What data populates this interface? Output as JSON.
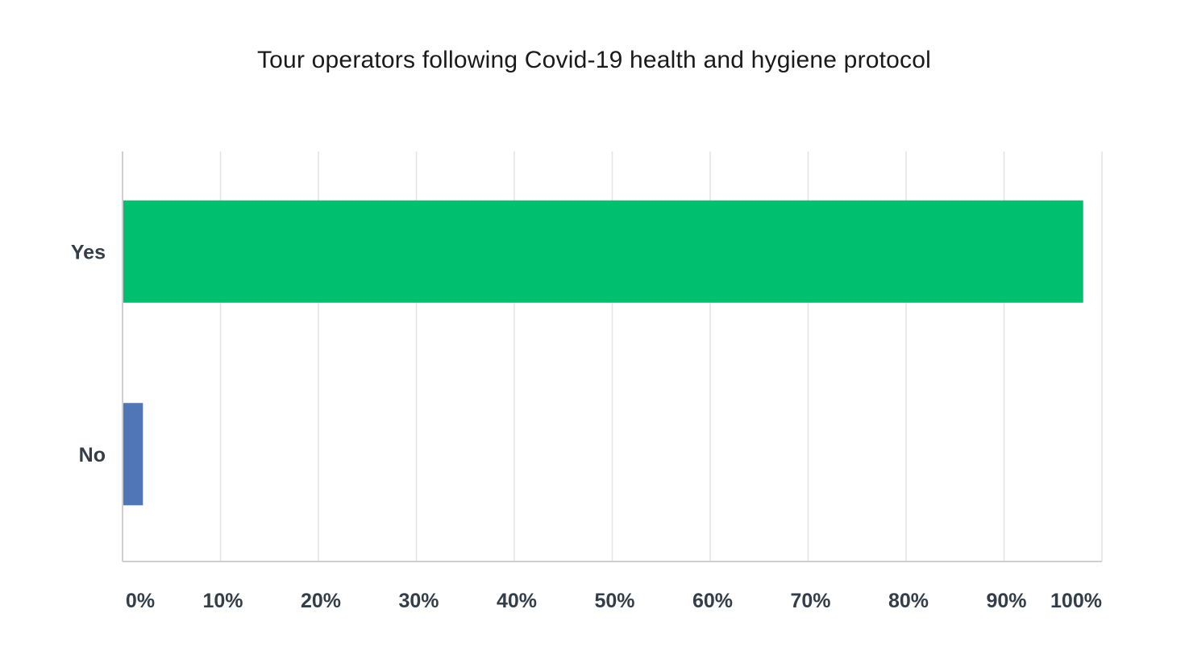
{
  "chart_data": {
    "type": "bar",
    "orientation": "horizontal",
    "title": "Tour operators following Covid-19 health and hygiene protocol",
    "xlabel": "",
    "ylabel": "",
    "categories": [
      "Yes",
      "No"
    ],
    "values": [
      98,
      2
    ],
    "unit": "%",
    "xlim": [
      0,
      100
    ],
    "x_ticks": [
      "0%",
      "10%",
      "20%",
      "30%",
      "40%",
      "50%",
      "60%",
      "70%",
      "80%",
      "90%",
      "100%"
    ],
    "colors": [
      "#00bf6f",
      "#4f76b6"
    ],
    "grid": true,
    "legend": "none"
  }
}
